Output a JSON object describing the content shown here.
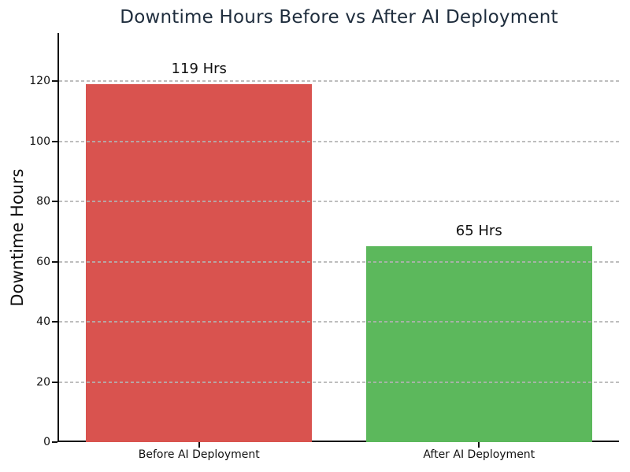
{
  "figure": {
    "background_color": "#ffffff"
  },
  "chart_data": {
    "type": "bar",
    "title": "Downtime Hours Before vs After AI Deployment",
    "title_color": "#1f2d3d",
    "xlabel": "",
    "ylabel": "Downtime Hours",
    "categories": [
      "Before AI Deployment",
      "After AI Deployment"
    ],
    "values": [
      119,
      65
    ],
    "bar_value_labels": [
      "119 Hrs",
      "65 Hrs"
    ],
    "bar_colors": [
      "#d9534f",
      "#5cb85c"
    ],
    "ylim": [
      0,
      136
    ],
    "yticks": [
      0,
      20,
      40,
      60,
      80,
      100,
      120
    ],
    "grid": {
      "axis": "y",
      "style": "dashed",
      "color": "#b2b2b2"
    },
    "legend": "none"
  }
}
